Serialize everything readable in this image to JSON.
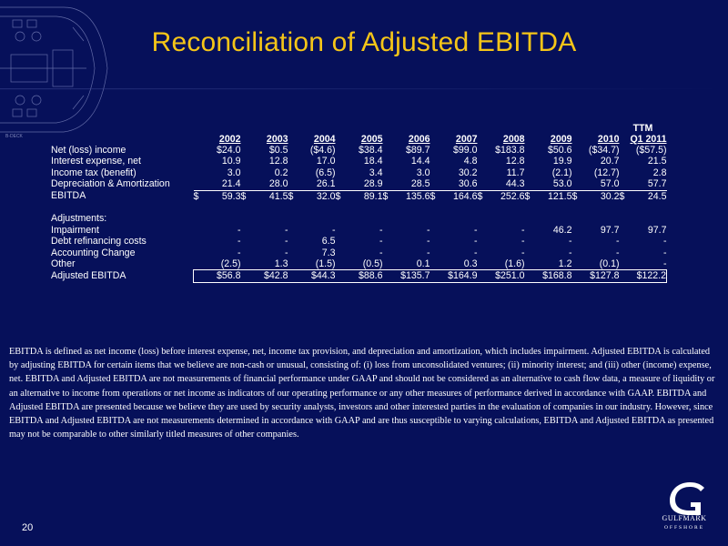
{
  "title": "Reconciliation of Adjusted EBITDA",
  "deck_label": "B-DECK",
  "table": {
    "ttm_label": "TTM",
    "years": [
      "2002",
      "2003",
      "2004",
      "2005",
      "2006",
      "2007",
      "2008",
      "2009",
      "2010",
      "Q1 2011"
    ],
    "rows": [
      {
        "label": "Net (loss) income",
        "values": [
          "$24.0",
          "$0.5",
          "($4.6)",
          "$38.4",
          "$89.7",
          "$99.0",
          "$183.8",
          "$50.6",
          "($34.7)",
          "($57.5)"
        ]
      },
      {
        "label": "Interest expense, net",
        "values": [
          "10.9",
          "12.8",
          "17.0",
          "18.4",
          "14.4",
          "4.8",
          "12.8",
          "19.9",
          "20.7",
          "21.5"
        ]
      },
      {
        "label": "Income tax (benefit)",
        "values": [
          "3.0",
          "0.2",
          "(6.5)",
          "3.4",
          "3.0",
          "30.2",
          "11.7",
          "(2.1)",
          "(12.7)",
          "2.8"
        ]
      },
      {
        "label": "Depreciation & Amortization",
        "values": [
          "21.4",
          "28.0",
          "26.1",
          "28.9",
          "28.5",
          "30.6",
          "44.3",
          "53.0",
          "57.0",
          "57.7"
        ]
      },
      {
        "label": "EBITDA",
        "currency": "$",
        "values": [
          "59.3",
          "41.5",
          "32.0",
          "89.1",
          "135.6",
          "164.6",
          "252.6",
          "121.5",
          "30.2",
          "24.5"
        ]
      }
    ],
    "adjustments_label": "Adjustments:",
    "adjustments": [
      {
        "label": "Impairment",
        "values": [
          "-",
          "-",
          "-",
          "-",
          "-",
          "-",
          "-",
          "46.2",
          "97.7",
          "97.7"
        ]
      },
      {
        "label": "Debt refinancing costs",
        "values": [
          "-",
          "-",
          "6.5",
          "-",
          "-",
          "-",
          "-",
          "-",
          "-",
          "-"
        ]
      },
      {
        "label": "Accounting Change",
        "values": [
          "-",
          "-",
          "7.3",
          "-",
          "-",
          "-",
          "-",
          "-",
          "-",
          "-"
        ]
      },
      {
        "label": "Other",
        "values": [
          "(2.5)",
          "1.3",
          "(1.5)",
          "(0.5)",
          "0.1",
          "0.3",
          "(1.6)",
          "1.2",
          "(0.1)",
          "-"
        ]
      }
    ],
    "total": {
      "label": "Adjusted EBITDA",
      "values": [
        "$56.8",
        "$42.8",
        "$44.3",
        "$88.6",
        "$135.7",
        "$164.9",
        "$251.0",
        "$168.8",
        "$127.8",
        "$122.2"
      ]
    }
  },
  "note": "EBITDA is defined as net income (loss) before interest expense, net, income tax provision, and depreciation and amortization, which includes impairment.  Adjusted EBITDA is calculated by adjusting EBITDA for certain items that we believe are non-cash or unusual, consisting of: (i) loss from unconsolidated ventures; (ii) minority interest; and (iii) other (income) expense, net.  EBITDA and Adjusted EBITDA are not measurements of financial performance under GAAP and should not be considered as an alternative to cash flow data, a measure of liquidity or an alternative to income from operations or net income as indicators of our operating performance or any other measures of performance derived in accordance with GAAP.  EBITDA and Adjusted EBITDA are presented because we believe they are used by security analysts, investors and other interested parties in the evaluation of companies in our industry.  However, since EBITDA and Adjusted EBITDA are not measurements determined in accordance with GAAP and are thus susceptible to varying calculations, EBITDA and Adjusted EBITDA as presented may not be comparable to other similarly titled measures of other companies.",
  "page_number": "20",
  "logo": {
    "letter": "G",
    "name": "GULFMARK",
    "sub": "OFFSHORE"
  },
  "colors": {
    "background": "#06105a",
    "title": "#f5c518",
    "text": "#ffffff"
  }
}
